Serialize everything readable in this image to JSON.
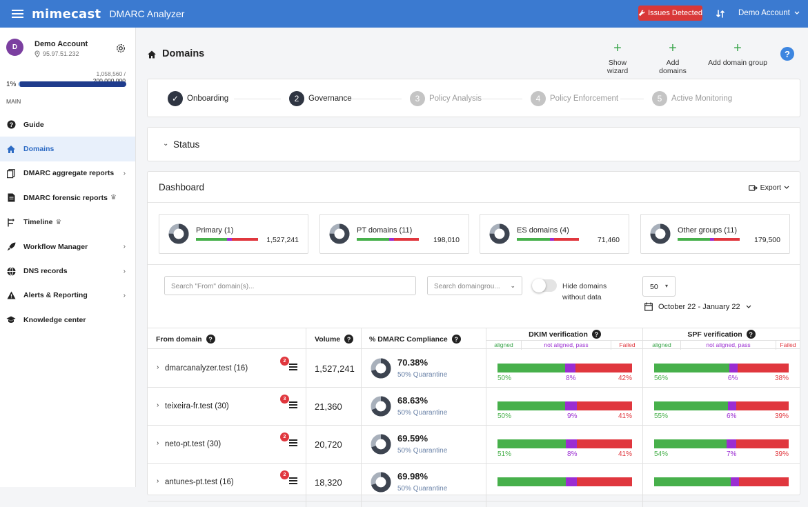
{
  "topbar": {
    "logo": "mimecast",
    "app_name": "DMARC Analyzer",
    "issues_label": "Issues Detected",
    "account_label": "Demo Account"
  },
  "sidebar": {
    "avatar_letter": "D",
    "account_name": "Demo Account",
    "account_ip": "95.97.51.232",
    "usage_used": "1,058,560",
    "usage_sep": " / ",
    "usage_total": "200,000,000",
    "usage_pct_label": "1%",
    "usage_fraction": 0.0053,
    "section_label": "MAIN",
    "items": [
      {
        "label": "Guide",
        "icon": "help-circle-icon",
        "chevron": false,
        "crown": false
      },
      {
        "label": "Domains",
        "icon": "home-icon",
        "chevron": false,
        "crown": false,
        "active": true
      },
      {
        "label": "DMARC aggregate reports",
        "icon": "documents-icon",
        "chevron": true,
        "crown": false
      },
      {
        "label": "DMARC forensic reports",
        "icon": "document-icon",
        "chevron": false,
        "crown": true
      },
      {
        "label": "Timeline",
        "icon": "timeline-icon",
        "chevron": false,
        "crown": true
      },
      {
        "label": "Workflow Manager",
        "icon": "rocket-icon",
        "chevron": true,
        "crown": false
      },
      {
        "label": "DNS records",
        "icon": "globe-icon",
        "chevron": true,
        "crown": false
      },
      {
        "label": "Alerts & Reporting",
        "icon": "warning-icon",
        "chevron": true,
        "crown": false
      },
      {
        "label": "Knowledge center",
        "icon": "graduation-cap-icon",
        "chevron": false,
        "crown": false
      }
    ]
  },
  "page": {
    "title": "Domains",
    "actions": [
      {
        "label": "Show wizard"
      },
      {
        "label": "Add domains"
      },
      {
        "label": "Add domain group"
      }
    ],
    "help": "?"
  },
  "stepper": {
    "steps": [
      {
        "num": "✓",
        "label": "Onboarding",
        "state": "done"
      },
      {
        "num": "2",
        "label": "Governance",
        "state": "current"
      },
      {
        "num": "3",
        "label": "Policy Analysis",
        "state": "todo"
      },
      {
        "num": "4",
        "label": "Policy Enforcement",
        "state": "todo"
      },
      {
        "num": "5",
        "label": "Active Monitoring",
        "state": "todo"
      }
    ]
  },
  "status": {
    "label": "Status"
  },
  "dashboard": {
    "title": "Dashboard",
    "export_label": "Export",
    "groups": [
      {
        "name": "Primary (1)",
        "value": "1,527,241",
        "bar": [
          0.5,
          0.08,
          0.42
        ]
      },
      {
        "name": "PT domains (11)",
        "value": "198,010",
        "bar": [
          0.52,
          0.08,
          0.4
        ]
      },
      {
        "name": "ES domains (4)",
        "value": "71,460",
        "bar": [
          0.53,
          0.07,
          0.4
        ]
      },
      {
        "name": "Other groups (11)",
        "value": "179,500",
        "bar": [
          0.52,
          0.07,
          0.41
        ]
      }
    ],
    "filters": {
      "search_placeholder": "Search \"From\" domain(s)...",
      "group_placeholder": "Search domaingrou...",
      "hide_line1": "Hide domains",
      "hide_line2": "without data",
      "per_page": "50",
      "date_range": "October 22 - January 22"
    },
    "table": {
      "headers": {
        "from": "From domain",
        "volume": "Volume",
        "compliance": "% DMARC Compliance",
        "dkim": "DKIM verification",
        "spf": "SPF verification"
      },
      "subheaders": {
        "aligned": "aligned",
        "not_aligned_pass": "not aligned, pass",
        "failed": "Failed"
      },
      "rows": [
        {
          "domain": "dmarcanalyzer.test (16)",
          "badge": "2",
          "volume": "1,527,241",
          "compliance": "70.38%",
          "compliance_value": 0.7038,
          "policy": "50% Quarantine",
          "dkim": {
            "aligned": 50,
            "nap": 8,
            "failed": 42,
            "aligned_label": "50%",
            "nap_label": "8%",
            "failed_label": "42%"
          },
          "spf": {
            "aligned": 56,
            "nap": 6,
            "failed": 38,
            "aligned_label": "56%",
            "nap_label": "6%",
            "failed_label": "38%"
          }
        },
        {
          "domain": "teixeira-fr.test (30)",
          "badge": "3",
          "volume": "21,360",
          "compliance": "68.63%",
          "compliance_value": 0.6863,
          "policy": "50% Quarantine",
          "dkim": {
            "aligned": 50,
            "nap": 9,
            "failed": 41,
            "aligned_label": "50%",
            "nap_label": "9%",
            "failed_label": "41%"
          },
          "spf": {
            "aligned": 55,
            "nap": 6,
            "failed": 39,
            "aligned_label": "55%",
            "nap_label": "6%",
            "failed_label": "39%"
          }
        },
        {
          "domain": "neto-pt.test (30)",
          "badge": "2",
          "volume": "20,720",
          "compliance": "69.59%",
          "compliance_value": 0.6959,
          "policy": "50% Quarantine",
          "dkim": {
            "aligned": 51,
            "nap": 8,
            "failed": 41,
            "aligned_label": "51%",
            "nap_label": "8%",
            "failed_label": "41%"
          },
          "spf": {
            "aligned": 54,
            "nap": 7,
            "failed": 39,
            "aligned_label": "54%",
            "nap_label": "7%",
            "failed_label": "39%"
          }
        },
        {
          "domain": "antunes-pt.test (16)",
          "badge": "2",
          "volume": "18,320",
          "compliance": "69.98%",
          "compliance_value": 0.6998,
          "policy": "50% Quarantine",
          "dkim": {
            "aligned": 51,
            "nap": 8,
            "failed": 41,
            "aligned_label": "",
            "nap_label": "",
            "failed_label": ""
          },
          "spf": {
            "aligned": 57,
            "nap": 6,
            "failed": 37,
            "aligned_label": "",
            "nap_label": "",
            "failed_label": ""
          }
        }
      ]
    }
  },
  "colors": {
    "brand": "#3b7ad0",
    "aligned": "#47b04b",
    "not_aligned_pass": "#9b2dd2",
    "failed": "#e0373e",
    "issues": "#d93838"
  }
}
